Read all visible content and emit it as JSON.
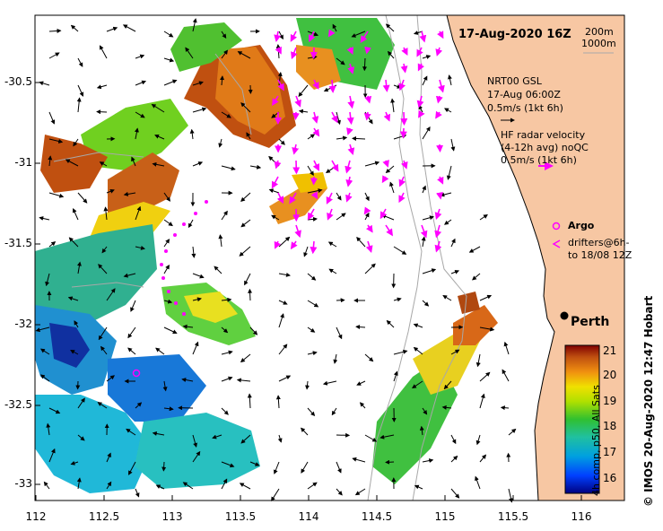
{
  "map": {
    "timestamp": "17-Aug-2020 16Z",
    "depth_contours": [
      "200m",
      "1000m"
    ],
    "lat_ticks": [
      "-30.5",
      "-31",
      "-31.5",
      "-32",
      "-32.5",
      "-33"
    ],
    "lon_ticks": [
      "112",
      "112.5",
      "113",
      "113.5",
      "114",
      "114.5",
      "115",
      "115.5",
      "116"
    ],
    "place_label": "Perth",
    "credit": "IMOS 20-Aug-2020 12:47 Hobart",
    "copyright_symbol": "©"
  },
  "legend": {
    "model_source": "NRT00 GSL",
    "model_time": "17-Aug 06:00Z",
    "model_scale": "0.5m/s (1kt 6h)",
    "radar_title": "HF radar velocity",
    "radar_avg": "(4-12h avg) noQC",
    "radar_scale": "0.5m/s (1kt 6h)",
    "argo_label": "Argo",
    "drifters_label": "drifters@6h-",
    "drifters_label2": "to 18/08 12Z"
  },
  "colorbar": {
    "ticks": [
      "21",
      "20",
      "19",
      "18",
      "17",
      "16"
    ],
    "caption": "4h comp, p50, All Sats",
    "min": 15.5,
    "max": 21.2
  },
  "colors": {
    "land": "#f7c7a3",
    "radar_arrow": "#ff00ff",
    "contour": "#a8a8a8",
    "sst_colormap": [
      "#000080",
      "#0050ff",
      "#00b0e0",
      "#20c090",
      "#30c030",
      "#b0e000",
      "#f0e000",
      "#e89010",
      "#c05010",
      "#902000"
    ]
  }
}
